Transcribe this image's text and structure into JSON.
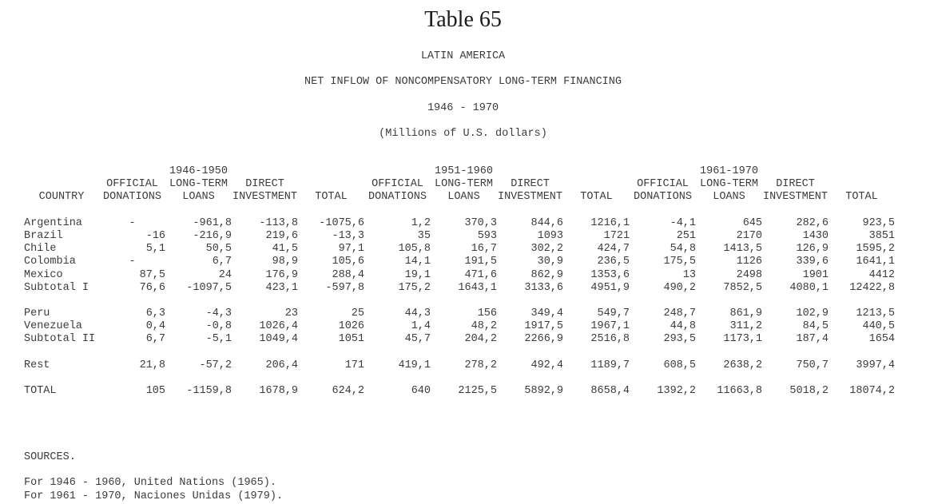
{
  "header": {
    "title": "Table 65",
    "subtitle_lines": [
      "LATIN AMERICA",
      "NET INFLOW OF NONCOMPENSATORY LONG-TERM FINANCING",
      "1946 - 1970",
      "(Millions of U.S. dollars)"
    ]
  },
  "table": {
    "country_header": "COUNTRY",
    "periods": [
      "1946-1950",
      "1951-1960",
      "1961-1970"
    ],
    "col_headers_row1": [
      "OFFICIAL",
      "LONG-TERM",
      "DIRECT",
      ""
    ],
    "col_headers_row2": [
      "DONATIONS",
      "LOANS",
      "INVESTMENT",
      "TOTAL"
    ],
    "rows": [
      {
        "country": "Argentina",
        "gap_before": false,
        "values": [
          "-",
          "-961,8",
          "-113,8",
          "-1075,6",
          "1,2",
          "370,3",
          "844,6",
          "1216,1",
          "-4,1",
          "645",
          "282,6",
          "923,5"
        ]
      },
      {
        "country": "Brazil",
        "gap_before": false,
        "values": [
          "-16",
          "-216,9",
          "219,6",
          "-13,3",
          "35",
          "593",
          "1093",
          "1721",
          "251",
          "2170",
          "1430",
          "3851"
        ]
      },
      {
        "country": "Chile",
        "gap_before": false,
        "values": [
          "5,1",
          "50,5",
          "41,5",
          "97,1",
          "105,8",
          "16,7",
          "302,2",
          "424,7",
          "54,8",
          "1413,5",
          "126,9",
          "1595,2"
        ]
      },
      {
        "country": "Colombia",
        "gap_before": false,
        "values": [
          "-",
          "6,7",
          "98,9",
          "105,6",
          "14,1",
          "191,5",
          "30,9",
          "236,5",
          "175,5",
          "1126",
          "339,6",
          "1641,1"
        ]
      },
      {
        "country": "Mexico",
        "gap_before": false,
        "values": [
          "87,5",
          "24",
          "176,9",
          "288,4",
          "19,1",
          "471,6",
          "862,9",
          "1353,6",
          "13",
          "2498",
          "1901",
          "4412"
        ]
      },
      {
        "country": "Subtotal I",
        "gap_before": false,
        "values": [
          "76,6",
          "-1097,5",
          "423,1",
          "-597,8",
          "175,2",
          "1643,1",
          "3133,6",
          "4951,9",
          "490,2",
          "7852,5",
          "4080,1",
          "12422,8"
        ]
      },
      {
        "country": "Peru",
        "gap_before": true,
        "values": [
          "6,3",
          "-4,3",
          "23",
          "25",
          "44,3",
          "156",
          "349,4",
          "549,7",
          "248,7",
          "861,9",
          "102,9",
          "1213,5"
        ]
      },
      {
        "country": "Venezuela",
        "gap_before": false,
        "values": [
          "0,4",
          "-0,8",
          "1026,4",
          "1026",
          "1,4",
          "48,2",
          "1917,5",
          "1967,1",
          "44,8",
          "311,2",
          "84,5",
          "440,5"
        ]
      },
      {
        "country": "Subtotal II",
        "gap_before": false,
        "values": [
          "6,7",
          "-5,1",
          "1049,4",
          "1051",
          "45,7",
          "204,2",
          "2266,9",
          "2516,8",
          "293,5",
          "1173,1",
          "187,4",
          "1654"
        ]
      },
      {
        "country": "Rest",
        "gap_before": true,
        "values": [
          "21,8",
          "-57,2",
          "206,4",
          "171",
          "419,1",
          "278,2",
          "492,4",
          "1189,7",
          "608,5",
          "2638,2",
          "750,7",
          "3997,4"
        ]
      },
      {
        "country": "TOTAL",
        "gap_before": true,
        "values": [
          "105",
          "-1159,8",
          "1678,9",
          "624,2",
          "640",
          "2125,5",
          "5892,9",
          "8658,4",
          "1392,2",
          "11663,8",
          "5018,2",
          "18074,2"
        ]
      }
    ]
  },
  "sources": {
    "label": "SOURCES.",
    "lines": [
      "For 1946 - 1960, United Nations (1965).",
      "For 1961 - 1970, Naciones Unidas (1979)."
    ]
  }
}
